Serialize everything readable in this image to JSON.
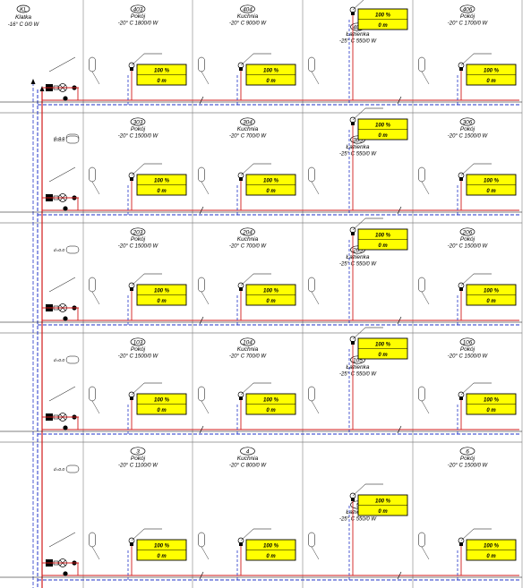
{
  "legend": {
    "room_number": "KL",
    "room_name": "Klatka",
    "spec": "-16° C 0/0 W"
  },
  "radiator_labels": {
    "percent": "100 %",
    "length": "0 m"
  },
  "pipe_tags": [
    "d=0.0",
    "d=0.0",
    "d=0.0",
    "d=0.0",
    "d=0.0"
  ],
  "colors": {
    "supply_pipe": "#d21b1b",
    "return_pipe": "#2233c8",
    "radiator_fill": "#ffff00",
    "grid": "#808080"
  },
  "floors": [
    {
      "rooms": [
        {
          "number": "403",
          "name": "Pokój",
          "spec": "-20° C 1800/0 W"
        },
        {
          "number": "404",
          "name": "Kuchnia",
          "spec": "-20° C 900/0 W"
        },
        {
          "number": "405",
          "name": "Łazienka",
          "spec": "-25° C 550/0 W"
        },
        {
          "number": "406",
          "name": "Pokój",
          "spec": "-20° C 1700/0 W"
        }
      ]
    },
    {
      "rooms": [
        {
          "number": "303",
          "name": "Pokój",
          "spec": "-20° C 1500/0 W"
        },
        {
          "number": "304",
          "name": "Kuchnia",
          "spec": "-20° C 700/0 W"
        },
        {
          "number": "305",
          "name": "Łazienka",
          "spec": "-25° C 550/0 W"
        },
        {
          "number": "306",
          "name": "Pokój",
          "spec": "-20° C 1500/0 W"
        }
      ]
    },
    {
      "rooms": [
        {
          "number": "203",
          "name": "Pokój",
          "spec": "-20° C 1500/0 W"
        },
        {
          "number": "204",
          "name": "Kuchnia",
          "spec": "-20° C 700/0 W"
        },
        {
          "number": "205",
          "name": "Łazienka",
          "spec": "-25° C 550/0 W"
        },
        {
          "number": "206",
          "name": "Pokój",
          "spec": "-20° C 1500/0 W"
        }
      ]
    },
    {
      "rooms": [
        {
          "number": "103",
          "name": "Pokój",
          "spec": "-20° C 1500/0 W"
        },
        {
          "number": "104",
          "name": "Kuchnia",
          "spec": "-20° C 700/0 W"
        },
        {
          "number": "105",
          "name": "Łazienka",
          "spec": "-25° C 550/0 W"
        },
        {
          "number": "106",
          "name": "Pokój",
          "spec": "-20° C 1500/0 W"
        }
      ]
    },
    {
      "rooms": [
        {
          "number": "3",
          "name": "Pokój",
          "spec": "-20° C 1100/0 W"
        },
        {
          "number": "4",
          "name": "Kuchnia",
          "spec": "-20° C 800/0 W"
        },
        {
          "number": "5",
          "name": "Łazienka",
          "spec": "-25° C 550/0 W"
        },
        {
          "number": "6",
          "name": "Pokój",
          "spec": "-20° C 1500/0 W"
        }
      ]
    }
  ]
}
